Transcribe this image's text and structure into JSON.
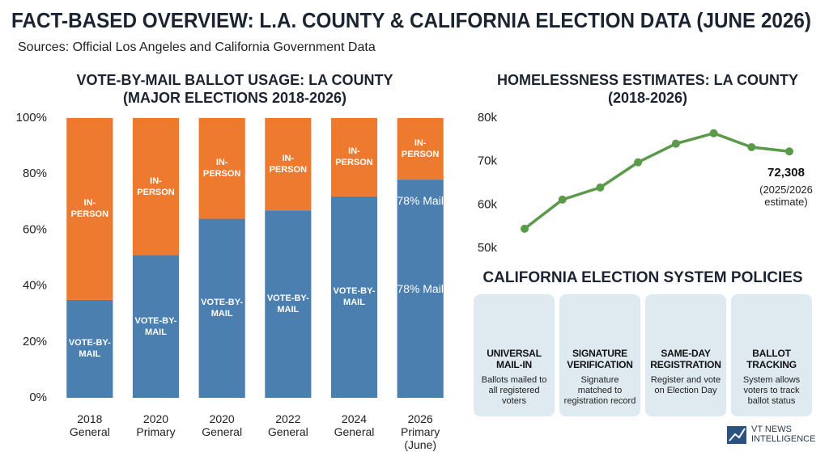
{
  "header": {
    "title": "FACT-BASED OVERVIEW: L.A. COUNTY & CALIFORNIA ELECTION DATA (JUNE 2026)",
    "subtitle": "Sources: Official Los Angeles and California Government Data"
  },
  "chart_data": [
    {
      "type": "stacked-bar",
      "title": "VOTE-BY-MAIL BALLOT USAGE: LA COUNTY (MAJOR ELECTIONS 2018-2026)",
      "categories": [
        "2018 General",
        "2020 Primary",
        "2020 General",
        "2022 General",
        "2024 General",
        "2026 Primary (June)"
      ],
      "series": [
        {
          "name": "VOTE-BY-MAIL",
          "color": "#4a7fb0",
          "values": [
            35,
            51,
            64,
            67,
            72,
            78
          ],
          "value_labels": [
            null,
            null,
            null,
            null,
            null,
            "78% Mail"
          ]
        },
        {
          "name": "IN-PERSON",
          "color": "#ee7a2f",
          "values": [
            65,
            49,
            36,
            33,
            28,
            22
          ]
        }
      ],
      "annotations": [
        {
          "text": "78% Mail"
        }
      ],
      "ylim": [
        0,
        100
      ],
      "yticks": [
        {
          "value": 0,
          "label": "0%"
        },
        {
          "value": 20,
          "label": "20%"
        },
        {
          "value": 40,
          "label": "40%"
        },
        {
          "value": 60,
          "label": "60%"
        },
        {
          "value": 80,
          "label": "80%"
        },
        {
          "value": 100,
          "label": "100%"
        }
      ],
      "grid": false
    },
    {
      "type": "line",
      "title": "HOMELESSNESS ESTIMATES: LA COUNTY (2018-2026)",
      "values": [
        54500,
        61200,
        64000,
        69800,
        74100,
        76500,
        73300,
        72308
      ],
      "value_labels": [
        null,
        null,
        null,
        null,
        null,
        null,
        null,
        "72,308"
      ],
      "color": "#5a9a4a",
      "annotations": [
        {
          "text": "(2025/2026 estimate)"
        }
      ],
      "ylim": [
        50000,
        80000
      ],
      "yticks": [
        {
          "value": 50000,
          "label": "50k"
        },
        {
          "value": 60000,
          "label": "60k"
        },
        {
          "value": 70000,
          "label": "70k"
        },
        {
          "value": 80000,
          "label": "80k"
        }
      ],
      "grid": false
    }
  ],
  "policies": {
    "title": "CALIFORNIA ELECTION SYSTEM POLICIES",
    "cards": [
      {
        "title": "UNIVERSAL MAIL-IN",
        "text": "Ballots mailed to all registered voters"
      },
      {
        "title": "SIGNATURE VERIFICATION",
        "text": "Signature matched to registration record"
      },
      {
        "title": "SAME-DAY REGISTRATION",
        "text": "Register and vote on Election Day"
      },
      {
        "title": "BALLOT TRACKING",
        "text": "System allows voters to track ballot status"
      }
    ]
  },
  "footer": {
    "brand": "VT NEWS INTELLIGENCE"
  }
}
